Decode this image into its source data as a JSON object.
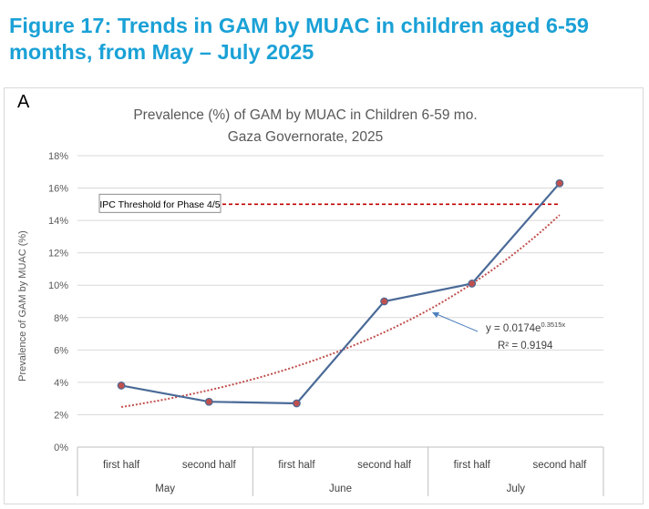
{
  "figure": {
    "title": "Figure 17: Trends in GAM by MUAC in children aged 6-59 months, from May – July 2025",
    "panel_label": "A"
  },
  "chart_data": {
    "type": "line",
    "title_line1": "Prevalence (%) of GAM by MUAC in Children 6-59 mo.",
    "title_line2": "Gaza Governorate, 2025",
    "ylabel": "Prevalence of GAM by MUAC (%)",
    "xlabel": "",
    "ylim": [
      0,
      18
    ],
    "yticks": [
      0,
      2,
      4,
      6,
      8,
      10,
      12,
      14,
      16,
      18
    ],
    "ytick_labels": [
      "0%",
      "2%",
      "4%",
      "6%",
      "8%",
      "10%",
      "12%",
      "14%",
      "16%",
      "18%"
    ],
    "grid": true,
    "categories": [
      "first half",
      "second half",
      "first half",
      "second half",
      "first half",
      "second half"
    ],
    "groups": [
      "May",
      "June",
      "July"
    ],
    "series": [
      {
        "name": "Prevalence of GAM by MUAC",
        "values": [
          3.8,
          2.8,
          2.7,
          9.0,
          10.1,
          16.3
        ],
        "color": "#4a6a97",
        "marker_color": "#c0504d"
      }
    ],
    "trendline": {
      "type": "exponential",
      "a": 0.0174,
      "b": 0.3515,
      "equation_prefix": "y = 0.0174e",
      "equation_exponent": "0.3515x",
      "r2": "R² = 0.9194",
      "color": "#c0504d"
    },
    "threshold": {
      "value": 15,
      "label": "IPC Threshold for Phase 4/5",
      "color": "#c00000"
    }
  }
}
